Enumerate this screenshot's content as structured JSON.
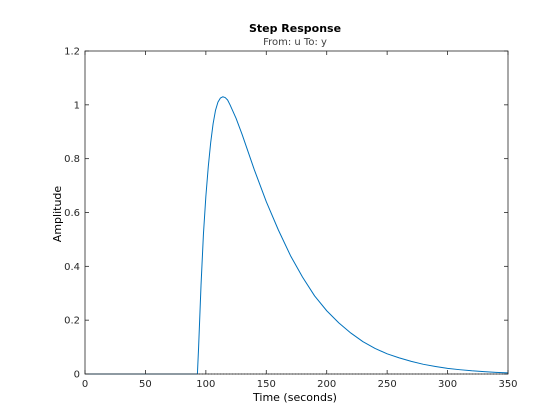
{
  "chart_data": {
    "type": "line",
    "title": "Step Response",
    "subtitle": "From: u  To: y",
    "xlabel": "Time (seconds)",
    "ylabel": "Amplitude",
    "xlim": [
      0,
      350
    ],
    "ylim": [
      0,
      1.2
    ],
    "xticks": [
      0,
      50,
      100,
      150,
      200,
      250,
      300,
      350
    ],
    "xtick_labels": [
      "0",
      "50",
      "100",
      "150",
      "200",
      "250",
      "300",
      "350"
    ],
    "yticks": [
      0,
      0.2,
      0.4,
      0.6,
      0.8,
      1.0,
      1.2
    ],
    "ytick_labels": [
      "0",
      "0.2",
      "0.4",
      "0.6",
      "0.8",
      "1",
      "1.2"
    ],
    "grid": false,
    "reference_line": {
      "y": 0,
      "style": "dotted"
    },
    "series": [
      {
        "color": "#0072BD",
        "x": [
          0,
          50,
          93,
          94,
          96,
          98,
          100,
          102,
          104,
          106,
          108,
          110,
          112,
          114,
          116,
          118,
          120,
          125,
          130,
          135,
          140,
          150,
          160,
          170,
          180,
          190,
          200,
          210,
          220,
          230,
          240,
          250,
          260,
          270,
          280,
          290,
          300,
          310,
          320,
          330,
          340,
          350
        ],
        "y": [
          0,
          0,
          0,
          0.1,
          0.33,
          0.52,
          0.66,
          0.77,
          0.86,
          0.93,
          0.98,
          1.01,
          1.025,
          1.03,
          1.027,
          1.018,
          1.0,
          0.95,
          0.89,
          0.825,
          0.76,
          0.64,
          0.535,
          0.44,
          0.36,
          0.29,
          0.235,
          0.19,
          0.152,
          0.12,
          0.095,
          0.075,
          0.06,
          0.047,
          0.036,
          0.028,
          0.021,
          0.016,
          0.012,
          0.009,
          0.006,
          0.004
        ]
      }
    ]
  }
}
